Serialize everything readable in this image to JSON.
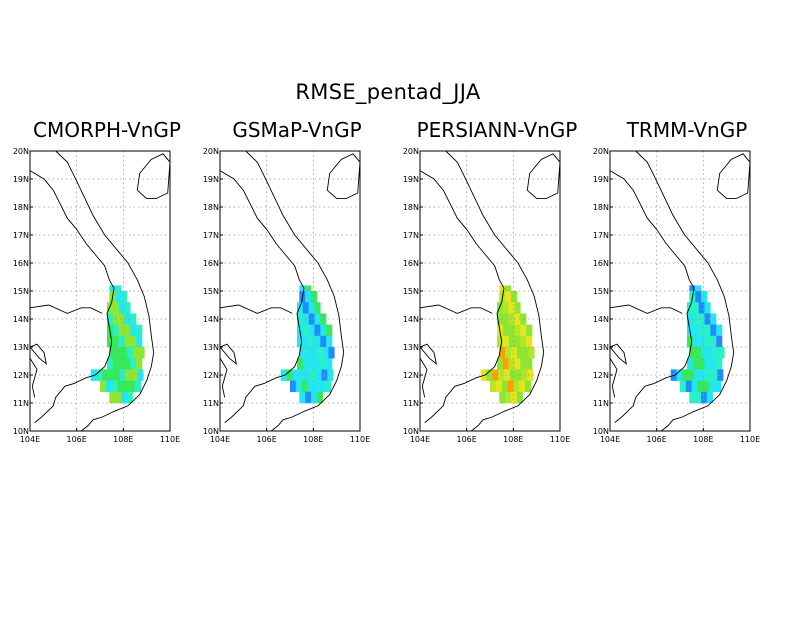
{
  "title": "RMSE_pentad_JJA",
  "axes": {
    "lat_labels": [
      "20N",
      "19N",
      "18N",
      "17N",
      "16N",
      "15N",
      "14N",
      "13N",
      "12N",
      "11N",
      "10N"
    ],
    "lon_labels": [
      "104E",
      "106E",
      "108E",
      "110E"
    ],
    "lat_range": [
      10,
      20
    ],
    "lon_range": [
      104,
      110
    ],
    "grid": "dotted",
    "colors": {
      "blue": "#1f4fe6",
      "sky": "#1e8cff",
      "cyan": "#22e6f0",
      "aqua": "#28f0c8",
      "green": "#36e85a",
      "lime": "#8ce632",
      "yellow": "#e6e61e",
      "orange": "#ffa000",
      "red": "#e81e1e"
    }
  },
  "panels": [
    {
      "title": "CMORPH-VnGP",
      "palette": [
        "#22e6f0",
        "#28f0c8",
        "#36e85a",
        "#8ce632",
        "#36e85a",
        "#28f0c8",
        "#8ce632",
        "#36e85a"
      ]
    },
    {
      "title": "GSMaP-VnGP",
      "palette": [
        "#22e6f0",
        "#22e6f0",
        "#28f0c8",
        "#22e6f0",
        "#1e8cff",
        "#22e6f0",
        "#36e85a",
        "#22e6f0"
      ]
    },
    {
      "title": "PERSIANN-VnGP",
      "palette": [
        "#8ce632",
        "#b4e628",
        "#e6e61e",
        "#8ce632",
        "#ffa000",
        "#b4e628",
        "#e6e61e",
        "#8ce632"
      ]
    },
    {
      "title": "TRMM-VnGP",
      "palette": [
        "#22e6f0",
        "#28f0c8",
        "#36e85a",
        "#1e8cff",
        "#22e6f0",
        "#36e85a",
        "#28f0c8",
        "#22e6f0"
      ]
    }
  ]
}
